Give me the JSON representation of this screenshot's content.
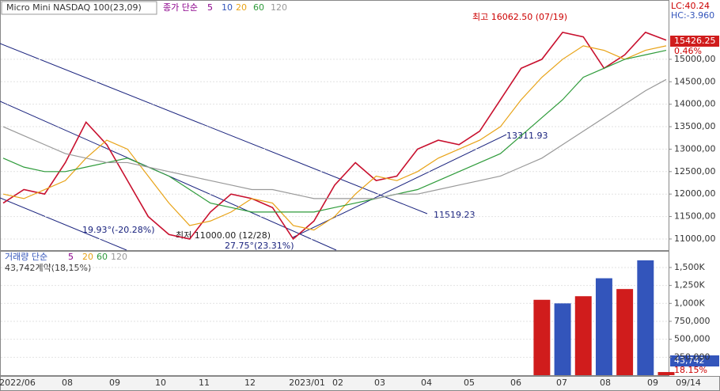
{
  "title": "Micro Mini NASDAQ 100(23,09)",
  "price_legend": {
    "label": "종가 단순",
    "periods": [
      "5",
      "10",
      "20",
      "60",
      "120"
    ]
  },
  "volume_legend": {
    "label": "거래량 단순",
    "periods": [
      "5",
      "20",
      "60",
      "120"
    ]
  },
  "volume_note": "43,742계약(18,15%)",
  "x_labels": [
    "2022/06",
    "08",
    "09",
    "10",
    "11",
    "12",
    "2023/01",
    "02",
    "03",
    "04",
    "05",
    "06",
    "07",
    "08",
    "09",
    "09/14"
  ],
  "side": {
    "lc": "LC:40.24",
    "hc": "HC:-3.960",
    "last": "15426.25",
    "change": "0.46%",
    "volume_last": "43,742",
    "volume_change": "18.15%"
  },
  "annotations": {
    "high": "최고 16062.50 (07/19)",
    "low": "최저 11000.00 (12/28)",
    "line1": "13311.93",
    "line2": "11519.23",
    "angle1": "19.93°(-20.28%)",
    "angle2": "27.75°(23.31%)"
  },
  "chart_data": [
    {
      "type": "line",
      "ylim": [
        10770,
        16320
      ],
      "yticks": [
        {
          "value": 11000,
          "label": "11000,00"
        },
        {
          "value": 11500,
          "label": "11500,00"
        },
        {
          "value": 12000,
          "label": "12000,00"
        },
        {
          "value": 12500,
          "label": "12500,00"
        },
        {
          "value": 13000,
          "label": "13000,00"
        },
        {
          "value": 13500,
          "label": "13500,00"
        },
        {
          "value": 14000,
          "label": "14000,00"
        },
        {
          "value": 14500,
          "label": "14500,00"
        },
        {
          "value": 15000,
          "label": "15000,00"
        }
      ],
      "series": [
        {
          "name": "종가",
          "color": "#c8102e",
          "values": [
            11800,
            12100,
            12000,
            12700,
            13600,
            13100,
            12300,
            11500,
            11100,
            11000,
            11600,
            12000,
            11900,
            11700,
            11000,
            11400,
            12200,
            12700,
            12300,
            12400,
            13000,
            13200,
            13100,
            13400,
            14100,
            14800,
            15000,
            15600,
            15500,
            14800,
            15100,
            15600,
            15426.25
          ]
        },
        {
          "name": "20",
          "color": "#e8a317",
          "values": [
            12000,
            11900,
            12100,
            12300,
            12800,
            13200,
            13000,
            12400,
            11800,
            11300,
            11400,
            11600,
            11900,
            11800,
            11300,
            11200,
            11500,
            12000,
            12400,
            12300,
            12500,
            12800,
            13000,
            13200,
            13500,
            14100,
            14600,
            15000,
            15300,
            15200,
            15000,
            15200,
            15300
          ]
        },
        {
          "name": "60",
          "color": "#2e9b3a",
          "values": [
            12800,
            12600,
            12500,
            12500,
            12600,
            12700,
            12800,
            12600,
            12400,
            12100,
            11800,
            11700,
            11600,
            11600,
            11600,
            11600,
            11700,
            11800,
            11900,
            12000,
            12100,
            12300,
            12500,
            12700,
            12900,
            13300,
            13700,
            14100,
            14600,
            14800,
            15000,
            15100,
            15200
          ]
        },
        {
          "name": "120",
          "color": "#999999",
          "values": [
            13500,
            13300,
            13100,
            12900,
            12800,
            12700,
            12700,
            12600,
            12500,
            12400,
            12300,
            12200,
            12100,
            12100,
            12000,
            11900,
            11900,
            11900,
            11900,
            12000,
            12000,
            12100,
            12200,
            12300,
            12400,
            12600,
            12800,
            13100,
            13400,
            13700,
            14000,
            14300,
            14550
          ]
        }
      ]
    },
    {
      "type": "bar",
      "ylim": [
        0,
        1720000
      ],
      "yticks": [
        {
          "value": 250000,
          "label": "250,000"
        },
        {
          "value": 500000,
          "label": "500,000"
        },
        {
          "value": 750000,
          "label": "750,000"
        },
        {
          "value": 1000000,
          "label": "1,000K"
        },
        {
          "value": 1250000,
          "label": "1,250K"
        },
        {
          "value": 1500000,
          "label": "1,500K"
        }
      ],
      "colors": [
        "#d01c1c",
        "#3355bb"
      ],
      "values": [
        0,
        0,
        0,
        0,
        0,
        0,
        0,
        0,
        0,
        0,
        0,
        0,
        0,
        0,
        0,
        0,
        0,
        0,
        0,
        0,
        0,
        0,
        0,
        0,
        0,
        0,
        1050000,
        1000000,
        1100000,
        1350000,
        1200000,
        1600000,
        43742
      ]
    }
  ]
}
